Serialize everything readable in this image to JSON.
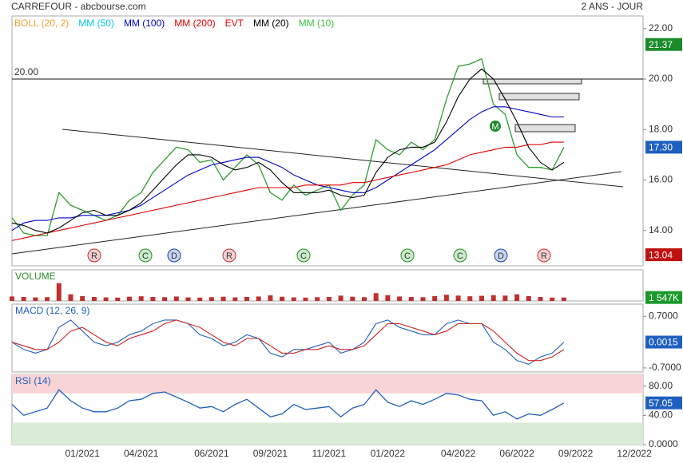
{
  "chart_data": [
    {
      "type": "line",
      "title": "CARREFOUR - abcbourse.com",
      "subtitle": "2 ANS - JOUR",
      "color": "#2e9e2e",
      "categories": [
        null,
        null,
        null,
        null,
        null,
        null,
        "01/2021",
        null,
        null,
        null,
        null,
        "04/2021",
        null,
        null,
        null,
        null,
        null,
        "06/2021",
        null,
        null,
        null,
        null,
        "09/2021",
        null,
        null,
        null,
        null,
        "11/2021",
        null,
        null,
        null,
        null,
        "01/2022",
        null,
        null,
        null,
        null,
        null,
        "04/2022",
        null,
        null,
        null,
        null,
        "06/2022",
        null,
        null,
        null,
        null,
        "09/2022",
        null,
        null,
        null,
        null,
        "12/2022"
      ],
      "values": [
        14.5,
        13.9,
        13.8,
        13.8,
        15.5,
        15.0,
        14.8,
        14.6,
        14.4,
        14.6,
        15.2,
        15.5,
        16.3,
        16.8,
        17.3,
        17.2,
        16.7,
        16.8,
        16.0,
        16.5,
        17.0,
        16.6,
        15.5,
        15.2,
        15.8,
        15.4,
        15.6,
        15.8,
        14.8,
        15.4,
        15.8,
        17.6,
        17.2,
        17.0,
        17.5,
        17.2,
        17.6,
        19.2,
        20.5,
        20.6,
        20.8,
        19.0,
        18.6,
        17.0,
        16.5,
        16.5,
        16.4,
        17.3,
        null,
        null,
        null,
        null,
        null,
        null
      ],
      "series": [
        {
          "name": "BOLL (20, 2)",
          "color": "#f0a030"
        },
        {
          "name": "MM (50)",
          "color": "#00c8e0"
        },
        {
          "name": "MM (100)",
          "color": "#0000c8",
          "values": [
            14.0,
            14.3,
            14.4,
            14.4,
            14.5,
            14.5,
            14.6,
            14.6,
            14.6,
            14.7,
            14.8,
            15.0,
            15.3,
            15.6,
            15.9,
            16.2,
            16.4,
            16.6,
            16.7,
            16.8,
            16.9,
            16.9,
            16.7,
            16.5,
            16.2,
            16.0,
            15.8,
            15.7,
            15.6,
            15.5,
            15.5,
            15.7,
            16.0,
            16.3,
            16.6,
            16.9,
            17.2,
            17.6,
            18.0,
            18.4,
            18.7,
            18.9,
            18.9,
            18.8,
            18.7,
            18.6,
            18.5,
            18.5,
            null,
            null,
            null,
            null,
            null,
            null
          ]
        },
        {
          "name": "MM (200)",
          "color": "#e00000",
          "values": [
            13.6,
            13.7,
            13.8,
            13.9,
            14.0,
            14.1,
            14.2,
            14.3,
            14.4,
            14.5,
            14.6,
            14.7,
            14.8,
            14.9,
            15.0,
            15.1,
            15.2,
            15.3,
            15.4,
            15.5,
            15.6,
            15.7,
            15.7,
            15.7,
            15.7,
            15.8,
            15.8,
            15.8,
            15.8,
            15.9,
            15.9,
            16.0,
            16.1,
            16.2,
            16.3,
            16.4,
            16.5,
            16.6,
            16.8,
            17.0,
            17.1,
            17.2,
            17.3,
            17.3,
            17.4,
            17.4,
            17.5,
            17.5,
            null,
            null,
            null,
            null,
            null,
            null
          ]
        },
        {
          "name": "EVT",
          "color": "#e00000"
        },
        {
          "name": "MM (20)",
          "color": "#000000",
          "values": [
            14.3,
            14.2,
            14.0,
            13.9,
            14.1,
            14.4,
            14.7,
            14.8,
            14.6,
            14.6,
            14.8,
            15.1,
            15.6,
            16.1,
            16.6,
            17.0,
            17.0,
            16.9,
            16.6,
            16.4,
            16.5,
            16.7,
            16.4,
            15.9,
            15.5,
            15.5,
            15.5,
            15.6,
            15.4,
            15.3,
            15.4,
            16.3,
            16.9,
            17.2,
            17.3,
            17.3,
            17.5,
            18.3,
            19.3,
            20.0,
            20.4,
            20.0,
            19.2,
            18.3,
            17.3,
            16.7,
            16.4,
            16.7,
            null,
            null,
            null,
            null,
            null,
            null
          ]
        },
        {
          "name": "MM (10)",
          "color": "#40c040"
        }
      ],
      "ylim": [
        12.6,
        22.5
      ],
      "yticks": [
        {
          "value": 14,
          "label": "14.00"
        },
        {
          "value": 16,
          "label": "16.00"
        },
        {
          "value": 18,
          "label": "18.00"
        },
        {
          "value": 20,
          "label": "20.00"
        },
        {
          "value": 22,
          "label": "22.00"
        }
      ],
      "hline": {
        "value": 20,
        "label": "20.00"
      },
      "last_labels": [
        {
          "value": 21.37,
          "label": "21.37",
          "color": "#1a8a2a"
        },
        {
          "value": 17.3,
          "label": "17.30",
          "color": "#1f5fbf"
        },
        {
          "value": 13.04,
          "label": "13.04",
          "color": "#c01010"
        }
      ],
      "events": [
        "R",
        "C",
        "D",
        "R",
        "C",
        "C",
        "C",
        "D",
        "R",
        "M"
      ]
    },
    {
      "type": "bar",
      "title": "VOLUME",
      "color": "#c03030",
      "values": [
        2000,
        1800,
        1600,
        1700,
        8000,
        3000,
        2200,
        1800,
        1600,
        1500,
        1900,
        2100,
        1800,
        1700,
        2000,
        1600,
        1500,
        1700,
        1900,
        1600,
        1800,
        2000,
        2500,
        1900,
        1600,
        1500,
        1700,
        1800,
        2400,
        1900,
        1700,
        3500,
        2600,
        2000,
        1800,
        1700,
        2200,
        2800,
        2400,
        2100,
        2300,
        2600,
        2400,
        3000,
        2200,
        1800,
        1500,
        1547,
        null,
        null,
        null,
        null,
        null,
        null
      ],
      "ylim": [
        0,
        14000
      ],
      "yticks": [],
      "last_labels": [
        {
          "value": 1547,
          "label": "1 547K",
          "color": "#1a9a2a"
        }
      ]
    },
    {
      "type": "line",
      "title": "MACD (12, 26, 9)",
      "series": [
        {
          "name": "MACD",
          "color": "#1f5fbf",
          "values": [
            0.0,
            -0.2,
            -0.3,
            -0.2,
            0.4,
            0.6,
            0.3,
            0.0,
            -0.1,
            0.0,
            0.2,
            0.3,
            0.5,
            0.6,
            0.6,
            0.5,
            0.2,
            0.1,
            -0.1,
            0.0,
            0.2,
            0.1,
            -0.3,
            -0.4,
            -0.2,
            -0.2,
            -0.1,
            0.0,
            -0.3,
            -0.2,
            0.0,
            0.5,
            0.6,
            0.4,
            0.3,
            0.2,
            0.2,
            0.5,
            0.6,
            0.5,
            0.5,
            0.0,
            -0.2,
            -0.5,
            -0.6,
            -0.4,
            -0.3,
            0.0,
            null,
            null,
            null,
            null,
            null,
            null
          ]
        },
        {
          "name": "Signal",
          "color": "#d02020",
          "values": [
            0.0,
            -0.1,
            -0.2,
            -0.2,
            0.0,
            0.3,
            0.4,
            0.2,
            0.0,
            -0.1,
            0.1,
            0.2,
            0.3,
            0.5,
            0.6,
            0.5,
            0.4,
            0.2,
            0.0,
            -0.1,
            0.1,
            0.1,
            -0.1,
            -0.3,
            -0.3,
            -0.2,
            -0.2,
            -0.1,
            -0.2,
            -0.2,
            -0.1,
            0.2,
            0.5,
            0.5,
            0.4,
            0.3,
            0.2,
            0.3,
            0.5,
            0.5,
            0.5,
            0.3,
            0.0,
            -0.3,
            -0.5,
            -0.5,
            -0.4,
            -0.2,
            null,
            null,
            null,
            null,
            null,
            null
          ]
        }
      ],
      "ylim": [
        -0.81,
        1.03
      ],
      "yticks": [
        {
          "value": -0.7,
          "label": "-0.7000"
        },
        {
          "value": 0.7,
          "label": "0.7000"
        }
      ],
      "last_labels": [
        {
          "value": 0.0015,
          "label": "0.0015",
          "color": "#1f5fbf"
        }
      ]
    },
    {
      "type": "line",
      "title": "RSI (14)",
      "color": "#1f5fbf",
      "values": [
        55,
        40,
        45,
        50,
        75,
        60,
        50,
        45,
        45,
        50,
        60,
        62,
        70,
        72,
        65,
        58,
        50,
        52,
        45,
        55,
        62,
        50,
        38,
        42,
        55,
        48,
        50,
        52,
        38,
        50,
        55,
        75,
        58,
        52,
        60,
        55,
        62,
        70,
        68,
        62,
        60,
        40,
        45,
        35,
        42,
        40,
        48,
        57,
        null,
        null,
        null,
        null,
        null,
        null
      ],
      "ylim": [
        0,
        96
      ],
      "yticks": [
        {
          "value": 0,
          "label": "0.0000"
        },
        {
          "value": 40,
          "label": "40.00"
        },
        {
          "value": 80,
          "label": "80.00"
        }
      ],
      "overbought": 70,
      "oversold": 30,
      "last_labels": [
        {
          "value": 57.05,
          "label": "57.05",
          "color": "#1f5fbf"
        }
      ]
    }
  ]
}
